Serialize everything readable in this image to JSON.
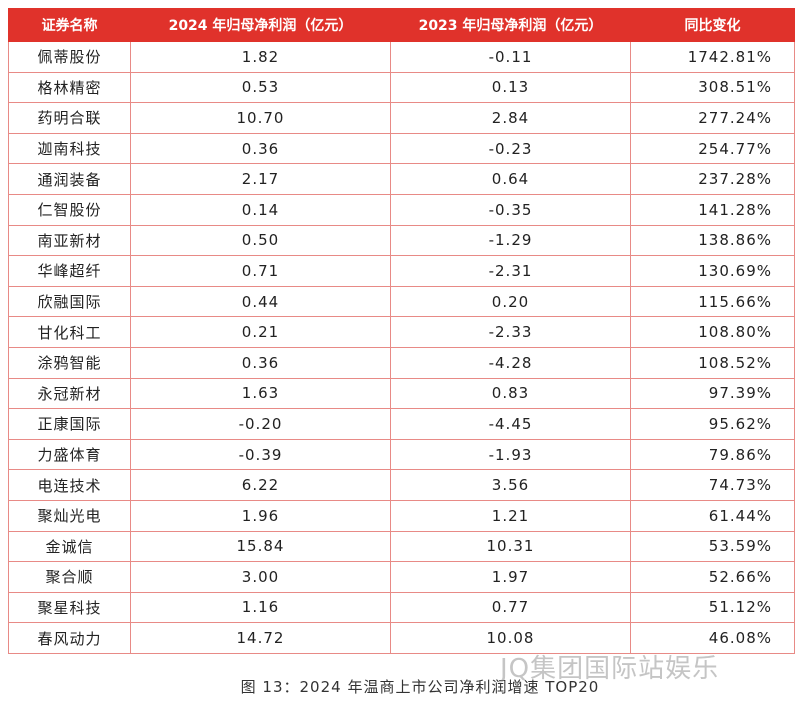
{
  "table": {
    "header": [
      "证券名称",
      "2024 年归母净利润（亿元）",
      "2023 年归母净利润（亿元）",
      "同比变化"
    ],
    "rows": [
      [
        "佩蒂股份",
        "1.82",
        "-0.11",
        "1742.81%"
      ],
      [
        "格林精密",
        "0.53",
        "0.13",
        "308.51%"
      ],
      [
        "药明合联",
        "10.70",
        "2.84",
        "277.24%"
      ],
      [
        "迦南科技",
        "0.36",
        "-0.23",
        "254.77%"
      ],
      [
        "通润装备",
        "2.17",
        "0.64",
        "237.28%"
      ],
      [
        "仁智股份",
        "0.14",
        "-0.35",
        "141.28%"
      ],
      [
        "南亚新材",
        "0.50",
        "-1.29",
        "138.86%"
      ],
      [
        "华峰超纤",
        "0.71",
        "-2.31",
        "130.69%"
      ],
      [
        "欣融国际",
        "0.44",
        "0.20",
        "115.66%"
      ],
      [
        "甘化科工",
        "0.21",
        "-2.33",
        "108.80%"
      ],
      [
        "涂鸦智能",
        "0.36",
        "-4.28",
        "108.52%"
      ],
      [
        "永冠新材",
        "1.63",
        "0.83",
        "97.39%"
      ],
      [
        "正康国际",
        "-0.20",
        "-4.45",
        "95.62%"
      ],
      [
        "力盛体育",
        "-0.39",
        "-1.93",
        "79.86%"
      ],
      [
        "电连技术",
        "6.22",
        "3.56",
        "74.73%"
      ],
      [
        "聚灿光电",
        "1.96",
        "1.21",
        "61.44%"
      ],
      [
        "金诚信",
        "15.84",
        "10.31",
        "53.59%"
      ],
      [
        "聚合顺",
        "3.00",
        "1.97",
        "52.66%"
      ],
      [
        "聚星科技",
        "1.16",
        "0.77",
        "51.12%"
      ],
      [
        "春风动力",
        "14.72",
        "10.08",
        "46.08%"
      ]
    ]
  },
  "caption": "图 13：2024 年温商上市公司净利润增速 TOP20",
  "watermark": "JQ集团国际站娱乐"
}
